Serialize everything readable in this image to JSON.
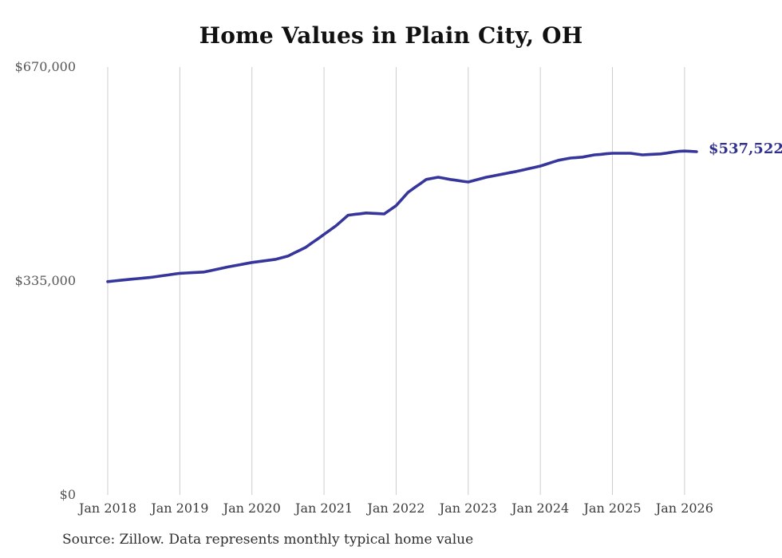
{
  "title": "Home Values in Plain City, OH",
  "end_label": "$537,522",
  "source": "Source: Zillow. Data represents monthly typical home value",
  "colors": {
    "line": "#35359B",
    "grid": "#cccccc",
    "title_text": "#111111",
    "y_tick_text": "#565656",
    "x_tick_text": "#3c3c3c",
    "end_label_text": "#32328E",
    "source_text": "#2e2e2e",
    "background": "#ffffff"
  },
  "chart_data": {
    "type": "line",
    "title": "Home Values in Plain City, OH",
    "series_name": "Monthly typical home value",
    "x_start": "Jan 2018",
    "x_end": "Mar 2026",
    "x_cadence": "monthly",
    "x_tick_labels": [
      "Jan 2018",
      "Jan 2019",
      "Jan 2020",
      "Jan 2021",
      "Jan 2022",
      "Jan 2023",
      "Jan 2024",
      "Jan 2025",
      "Jan 2026"
    ],
    "y_ticks": [
      {
        "label": "$670,000",
        "value": 670000
      },
      {
        "label": "$335,000",
        "value": 335000
      },
      {
        "label": "$0",
        "value": 0
      }
    ],
    "ylim": [
      0,
      670000
    ],
    "grid": "vertical-only",
    "legend": "none",
    "final_value": 537522,
    "values_monthly": [
      334000,
      335000,
      336000,
      337000,
      337900,
      338800,
      339600,
      340500,
      341800,
      343100,
      344400,
      345700,
      347000,
      347500,
      348000,
      348500,
      349000,
      351000,
      353000,
      355000,
      357000,
      358800,
      360500,
      362300,
      364000,
      365300,
      366500,
      367800,
      369000,
      371500,
      374000,
      378700,
      383300,
      388000,
      394700,
      401300,
      408000,
      414800,
      421500,
      429800,
      438000,
      439200,
      440300,
      441500,
      441000,
      440500,
      440000,
      446500,
      453000,
      463500,
      474000,
      480700,
      487300,
      494000,
      495800,
      497500,
      495800,
      494000,
      492700,
      491300,
      490000,
      492500,
      495000,
      497500,
      499300,
      501100,
      502900,
      504700,
      506500,
      508600,
      510800,
      512900,
      515000,
      518000,
      521000,
      524000,
      525800,
      527500,
      528300,
      529000,
      530800,
      532500,
      533300,
      534200,
      535000,
      535000,
      535000,
      535000,
      533800,
      532500,
      533000,
      533500,
      534000,
      535300,
      536700,
      538000,
      538500,
      538000,
      537522
    ]
  }
}
